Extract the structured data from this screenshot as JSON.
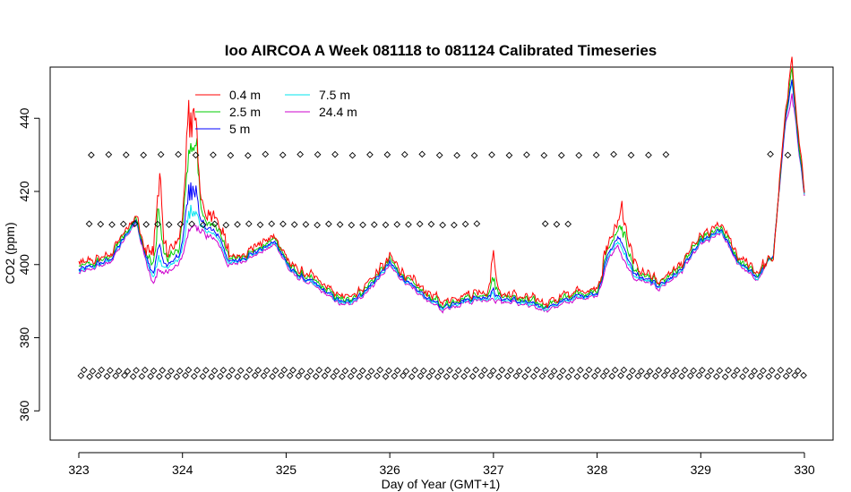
{
  "chart_data": {
    "type": "line",
    "title": "Ioo AIRCOA A  Week 081118 to 081124  Calibrated Timeseries",
    "xlabel": "Day of Year (GMT+1)",
    "ylabel": "CO2 (ppm)",
    "xlim": [
      323,
      330
    ],
    "ylim": [
      352,
      454
    ],
    "xticks": [
      323,
      324,
      325,
      326,
      327,
      328,
      329,
      330
    ],
    "yticks": [
      360,
      380,
      400,
      420,
      440
    ],
    "grid": false,
    "legend_position": "top-left",
    "series": [
      {
        "name": "0.4 m",
        "color": "#ff0000",
        "offset": 3.5,
        "noise": 1.6,
        "jitter": 0.7
      },
      {
        "name": "2.5 m",
        "color": "#00cd00",
        "offset": 2.0,
        "noise": 1.0,
        "jitter": 0.5
      },
      {
        "name": "5 m",
        "color": "#0000ff",
        "offset": 0.7,
        "noise": 0.5,
        "jitter": 0.3
      },
      {
        "name": "7.5 m",
        "color": "#00e5ee",
        "offset": 0.0,
        "noise": 0.3,
        "jitter": 0.3
      },
      {
        "name": "24.4 m",
        "color": "#cd00cd",
        "offset": -0.9,
        "noise": 0.3,
        "jitter": 0.3
      }
    ],
    "base_profile": [
      [
        323.0,
        398
      ],
      [
        323.3,
        401
      ],
      [
        323.55,
        412
      ],
      [
        323.65,
        402
      ],
      [
        323.72,
        395
      ],
      [
        323.85,
        399
      ],
      [
        324.0,
        402
      ],
      [
        324.2,
        410
      ],
      [
        324.35,
        407
      ],
      [
        324.45,
        400
      ],
      [
        324.7,
        403
      ],
      [
        324.9,
        406
      ],
      [
        325.05,
        398
      ],
      [
        325.3,
        394
      ],
      [
        325.55,
        389
      ],
      [
        325.75,
        392
      ],
      [
        326.0,
        400
      ],
      [
        326.2,
        394
      ],
      [
        326.5,
        388
      ],
      [
        326.7,
        390
      ],
      [
        326.9,
        391
      ],
      [
        327.2,
        390
      ],
      [
        327.5,
        388
      ],
      [
        327.8,
        391
      ],
      [
        328.0,
        392
      ],
      [
        328.12,
        403
      ],
      [
        328.2,
        406
      ],
      [
        328.35,
        397
      ],
      [
        328.6,
        394
      ],
      [
        328.8,
        398
      ],
      [
        329.0,
        406
      ],
      [
        329.2,
        409
      ],
      [
        329.35,
        401
      ],
      [
        329.55,
        396
      ],
      [
        329.7,
        403
      ],
      [
        329.82,
        440
      ],
      [
        329.88,
        450
      ],
      [
        329.95,
        430
      ],
      [
        330.0,
        420
      ]
    ],
    "spike_events": [
      {
        "center": 323.77,
        "width": 0.04,
        "amplitudes": [
          22,
          14,
          7,
          5,
          3
        ]
      },
      {
        "center": 324.06,
        "width": 0.05,
        "amplitudes": [
          30,
          26,
          15,
          10,
          6
        ]
      },
      {
        "center": 324.13,
        "width": 0.035,
        "amplitudes": [
          24,
          20,
          10,
          7,
          4
        ]
      },
      {
        "center": 327.0,
        "width": 0.03,
        "amplitudes": [
          10,
          5,
          2,
          1,
          0
        ]
      },
      {
        "center": 328.25,
        "width": 0.05,
        "amplitudes": [
          8,
          5,
          2,
          1,
          0
        ]
      },
      {
        "center": 329.87,
        "width": 0.03,
        "amplitudes": [
          4,
          2,
          0,
          0,
          -4
        ]
      }
    ],
    "calibration_markers": {
      "symbol": "open-diamond",
      "levels": [
        {
          "y": 369.5,
          "x_start": 323.02,
          "x_end": 330.0,
          "step": 0.084
        },
        {
          "y": 371.0,
          "x_start": 323.05,
          "x_end": 330.0,
          "step": 0.084
        },
        {
          "y": 411.0,
          "x_start": 323.1,
          "x_end": 327.8,
          "step": 0.11
        },
        {
          "y": 430.0,
          "x_start": 323.12,
          "x_end": 330.0,
          "step": 0.168
        }
      ]
    }
  }
}
